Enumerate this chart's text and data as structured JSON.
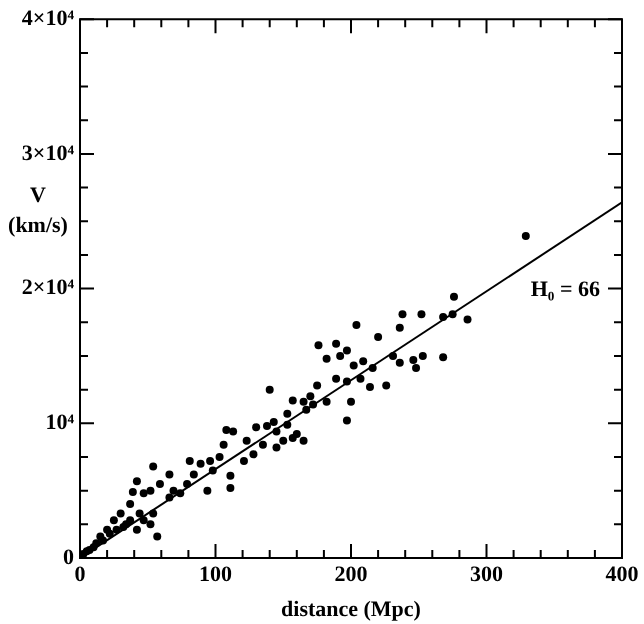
{
  "chart_data": {
    "type": "scatter",
    "xlabel": "distance (Mpc)",
    "ylabel": "V (km/s)",
    "grid": false,
    "legend": false,
    "xlim": [
      0,
      400
    ],
    "ylim": [
      0,
      40000
    ],
    "xticks": [
      0,
      {
        "value": 20,
        "label": null
      },
      {
        "value": 40,
        "label": null
      },
      {
        "value": 60,
        "label": null
      },
      {
        "value": 80,
        "label": null
      },
      100,
      {
        "value": 120,
        "label": null
      },
      {
        "value": 140,
        "label": null
      },
      {
        "value": 160,
        "label": null
      },
      {
        "value": 180,
        "label": null
      },
      200,
      {
        "value": 220,
        "label": null
      },
      {
        "value": 240,
        "label": null
      },
      {
        "value": 260,
        "label": null
      },
      {
        "value": 280,
        "label": null
      },
      300,
      {
        "value": 320,
        "label": null
      },
      {
        "value": 340,
        "label": null
      },
      {
        "value": 360,
        "label": null
      },
      {
        "value": 380,
        "label": null
      },
      400
    ],
    "yticks": [
      0,
      {
        "value": 2500,
        "label": null
      },
      {
        "value": 5000,
        "label": null
      },
      {
        "value": 7500,
        "label": null
      },
      {
        "value": 10000,
        "label": "10⁴"
      },
      {
        "value": 12500,
        "label": null
      },
      {
        "value": 15000,
        "label": null
      },
      {
        "value": 17500,
        "label": null
      },
      {
        "value": 20000,
        "label": "2×10⁴"
      },
      {
        "value": 22500,
        "label": null
      },
      {
        "value": 25000,
        "label": null
      },
      {
        "value": 27500,
        "label": null
      },
      {
        "value": 30000,
        "label": "3×10⁴"
      },
      {
        "value": 32500,
        "label": null
      },
      {
        "value": 35000,
        "label": null
      },
      {
        "value": 37500,
        "label": null
      },
      {
        "value": 40000,
        "label": "4×10⁴"
      }
    ],
    "annotations": [
      "H₀ = 66"
    ],
    "series": [
      {
        "color": "#000000",
        "marker": "circle",
        "x": [
          238,
          252,
          268,
          275,
          286,
          276,
          329,
          204,
          220,
          236,
          189,
          176,
          197,
          182,
          192,
          202,
          209,
          216,
          231,
          236,
          246,
          253,
          268,
          248,
          189,
          197,
          207,
          214,
          226,
          175,
          170,
          172,
          182,
          200,
          197,
          140,
          157,
          165,
          167,
          153,
          143,
          138,
          145,
          153,
          160,
          165,
          130,
          113,
          108,
          123,
          106,
          96,
          103,
          89,
          84,
          98,
          111,
          111,
          94,
          81,
          54,
          66,
          59,
          69,
          52,
          42,
          47,
          39,
          37,
          44,
          54,
          52,
          57,
          30,
          25,
          32,
          37,
          42,
          20,
          15,
          12,
          7,
          2.5,
          5,
          10,
          17,
          22,
          27,
          34,
          47,
          66,
          74,
          79,
          121,
          128,
          135,
          150,
          157,
          145
        ],
        "values": [
          18100,
          18100,
          17900,
          18100,
          17700,
          19400,
          23900,
          17300,
          16400,
          17100,
          15900,
          15800,
          15400,
          14800,
          15000,
          14300,
          14600,
          14100,
          15000,
          14500,
          14700,
          15000,
          14900,
          14100,
          13300,
          13100,
          13300,
          12700,
          12800,
          12800,
          12000,
          11400,
          11600,
          11600,
          10200,
          12500,
          11700,
          11600,
          11000,
          10700,
          10100,
          9800,
          9400,
          9900,
          9200,
          8700,
          9700,
          9400,
          9500,
          8700,
          8400,
          7200,
          7500,
          7000,
          6200,
          6500,
          6100,
          5200,
          5000,
          7200,
          6800,
          6200,
          5500,
          5000,
          5000,
          5700,
          4800,
          4900,
          4000,
          3300,
          3300,
          2500,
          1600,
          3300,
          2800,
          2300,
          2800,
          2100,
          2100,
          1600,
          1100,
          600,
          300,
          500,
          800,
          1300,
          1800,
          2100,
          2500,
          2800,
          4500,
          4800,
          5500,
          7200,
          7700,
          8400,
          8700,
          8900,
          8200
        ]
      },
      {
        "type": "line",
        "color": "#000000",
        "marker": "none",
        "x": [
          0,
          400
        ],
        "values": [
          0,
          26400
        ]
      }
    ]
  }
}
